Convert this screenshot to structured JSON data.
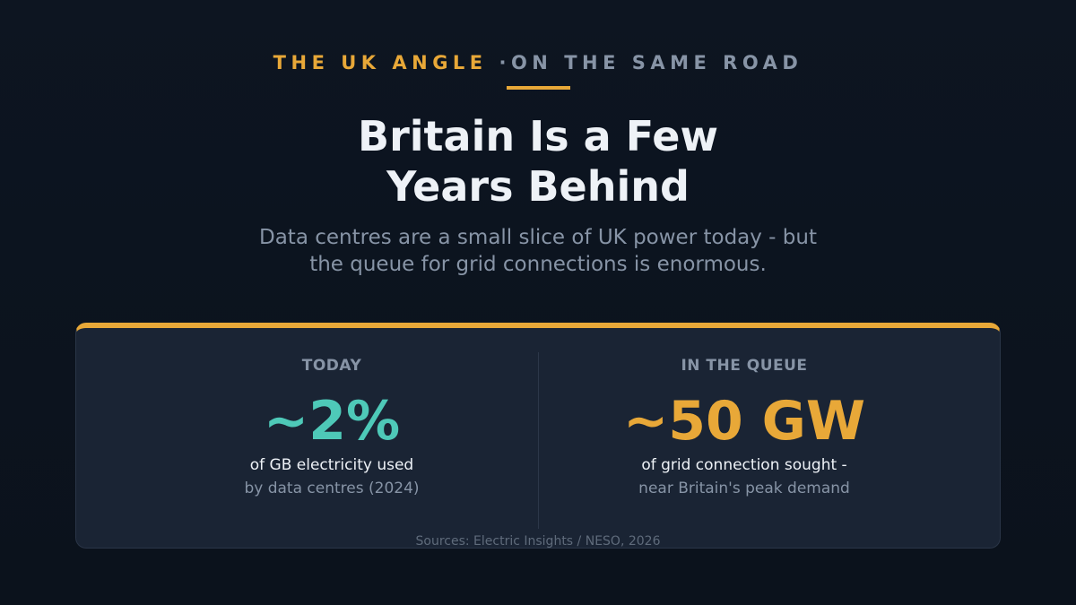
{
  "header": {
    "eyebrow": "THE UK ANGLE",
    "separator": "·",
    "eyebrow_secondary": "ON THE SAME ROAD",
    "title": "Britain Is a Few Years Behind",
    "subtitle": "Data centres are a small slice of UK power today - but the queue for grid connections is enormous."
  },
  "stats": [
    {
      "label": "TODAY",
      "value": "~2%",
      "caption": "of GB electricity used",
      "detail": "by data centres (2024)"
    },
    {
      "label": "IN THE QUEUE",
      "value": "~50 GW",
      "caption": "of grid connection sought -",
      "detail": "near Britain's peak demand"
    }
  ],
  "source": "Sources: Electric Insights / NESO, 2026"
}
